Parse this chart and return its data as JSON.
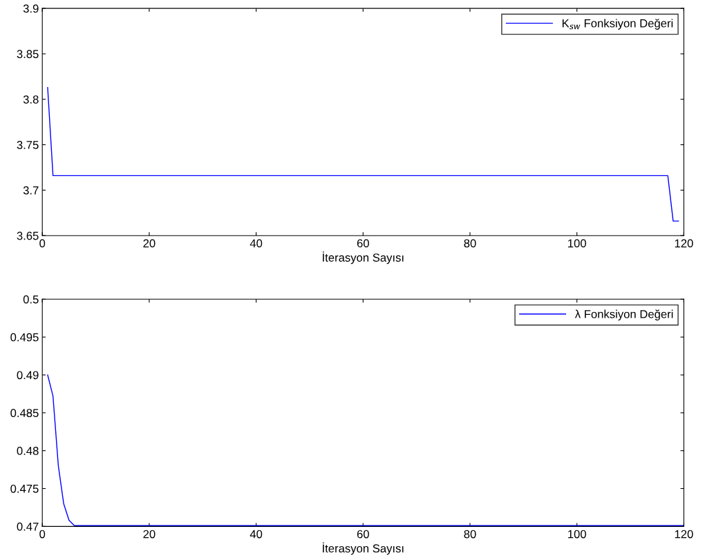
{
  "chart_data": [
    {
      "type": "line",
      "xlabel": "İterasyon Sayısı",
      "xlim": [
        0,
        120
      ],
      "xticks": [
        0,
        20,
        40,
        60,
        80,
        100,
        120
      ],
      "ylim": [
        3.65,
        3.9
      ],
      "yticks": [
        3.65,
        3.7,
        3.75,
        3.8,
        3.85,
        3.9
      ],
      "legend": "top right",
      "grid": false,
      "line_style": "solid",
      "series": [
        {
          "name": "K$_{sw}$ Fonksiyon Değeri",
          "color": "#0000ff",
          "x": [
            1,
            2,
            117,
            118,
            119
          ],
          "values": [
            3.813,
            3.716,
            3.716,
            3.666,
            3.666
          ]
        }
      ]
    },
    {
      "type": "line",
      "xlabel": "İterasyon Sayısı",
      "xlim": [
        0,
        120
      ],
      "xticks": [
        0,
        20,
        40,
        60,
        80,
        100,
        120
      ],
      "ylim": [
        0.47,
        0.5
      ],
      "yticks": [
        0.47,
        0.475,
        0.48,
        0.485,
        0.49,
        0.495,
        0.5
      ],
      "legend": "top right",
      "grid": false,
      "line_style": "solid",
      "series": [
        {
          "name": "λ Fonksiyon Değeri",
          "color": "#0000ff",
          "x": [
            1,
            2,
            3,
            4,
            5,
            6,
            120
          ],
          "values": [
            0.49,
            0.4872,
            0.478,
            0.473,
            0.4708,
            0.4701,
            0.4701
          ]
        }
      ]
    }
  ]
}
